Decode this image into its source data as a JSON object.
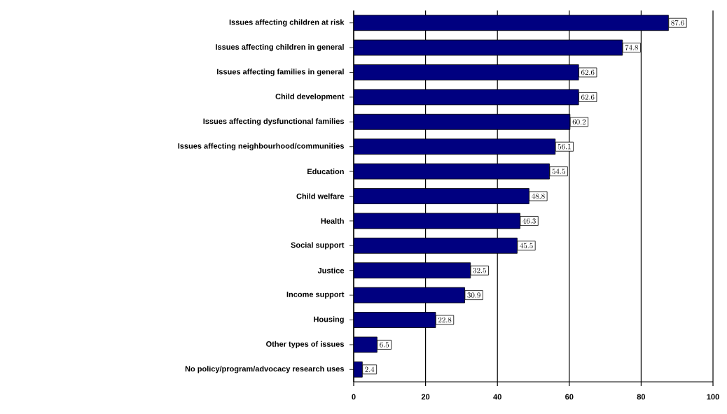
{
  "chart_data": {
    "type": "bar",
    "orientation": "horizontal",
    "categories": [
      "Issues affecting children at risk",
      "Issues affecting children in general",
      "Issues affecting families in general",
      "Child development",
      "Issues affecting dysfunctional families",
      "Issues affecting neighbourhood/communities",
      "Education",
      "Child welfare",
      "Health",
      "Social support",
      "Justice",
      "Income support",
      "Housing",
      "Other types of issues",
      "No policy/program/advocacy research uses"
    ],
    "values": [
      87.6,
      74.8,
      62.6,
      62.6,
      60.2,
      56.1,
      54.5,
      48.8,
      46.3,
      45.5,
      32.5,
      30.9,
      22.8,
      6.5,
      2.4
    ],
    "color": "#000080",
    "xlim": [
      0,
      100
    ],
    "xticks": [
      0,
      20,
      40,
      60,
      80,
      100
    ],
    "grid": "x",
    "data_labels": true
  }
}
